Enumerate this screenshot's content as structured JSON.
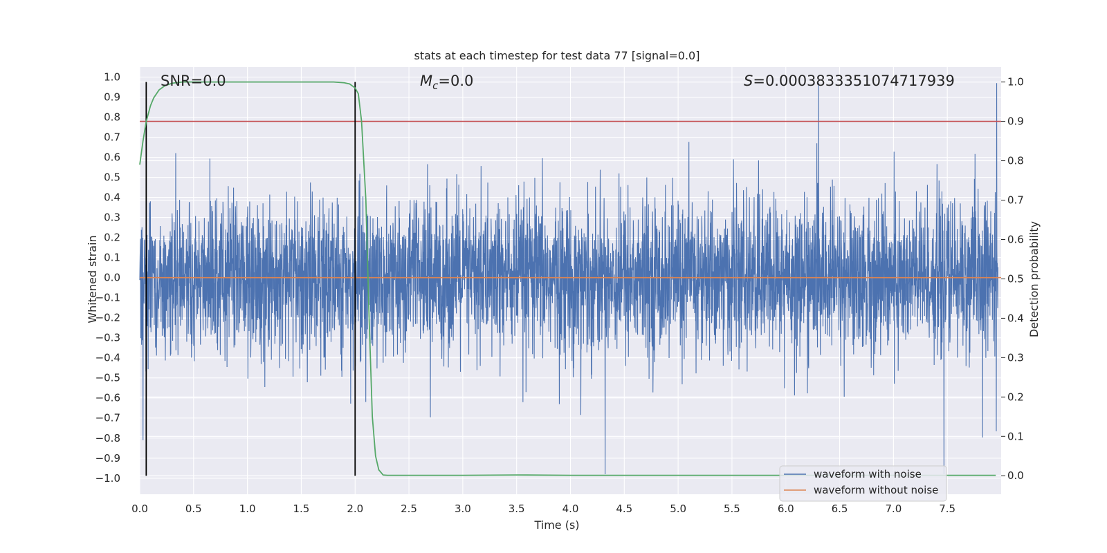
{
  "chart_data": {
    "type": "line",
    "title": "stats at each timestep for test data 77 [signal=0.0]",
    "xlabel": "Time (s)",
    "ylabel_left": "Whitened strain",
    "ylabel_right": "Detection probability",
    "xlim": [
      0.0,
      8.0
    ],
    "ylim_left": [
      -1.08,
      1.05
    ],
    "ylim_right": [
      -0.047,
      1.038
    ],
    "x_ticks": [
      "0.0",
      "0.5",
      "1.0",
      "1.5",
      "2.0",
      "2.5",
      "3.0",
      "3.5",
      "4.0",
      "4.5",
      "5.0",
      "5.5",
      "6.0",
      "6.5",
      "7.0",
      "7.5"
    ],
    "y_ticks_left": [
      "1.0",
      "0.9",
      "0.8",
      "0.7",
      "0.6",
      "0.5",
      "0.4",
      "0.3",
      "0.2",
      "0.1",
      "0.0",
      "−0.1",
      "−0.2",
      "−0.3",
      "−0.4",
      "−0.5",
      "−0.6",
      "−0.7",
      "−0.8",
      "−0.9",
      "−1.0"
    ],
    "y_ticks_right": [
      "1.0",
      "0.9",
      "0.8",
      "0.7",
      "0.6",
      "0.5",
      "0.4",
      "0.3",
      "0.2",
      "0.1",
      "0.0"
    ],
    "grid": true,
    "legend": "lower-right",
    "legend_entries": [
      "waveform with noise",
      "waveform without noise"
    ],
    "annotations": {
      "snr": "SNR=0.0",
      "mc_symbol": "M",
      "mc_sub": "c",
      "mc_value": "=0.0",
      "s_symbol": "S",
      "s_value": "=0.0003833351074717939"
    },
    "threshold": 0.9,
    "vertical_markers": [
      0.06,
      2.0
    ],
    "series": [
      {
        "name": "waveform with noise",
        "axis": "left",
        "color": "#4c72b0",
        "description": "noise-only whitened strain, amplitude mostly within ±0.45 with peaks near ±0.95"
      },
      {
        "name": "waveform without noise",
        "axis": "left",
        "color": "#dd8452",
        "x": [
          0,
          8
        ],
        "y": [
          0.0,
          0.0
        ]
      },
      {
        "name": "detection probability",
        "axis": "right",
        "color": "#55a868",
        "x": [
          0.0,
          0.03,
          0.06,
          0.1,
          0.13,
          0.18,
          0.23,
          0.3,
          0.4,
          0.6,
          1.0,
          1.5,
          1.8,
          1.9,
          1.95,
          2.0,
          2.03,
          2.06,
          2.1,
          2.13,
          2.16,
          2.19,
          2.22,
          2.26,
          2.3,
          2.5,
          3.0,
          3.5,
          4.0,
          5.0,
          6.0,
          7.0,
          7.95
        ],
        "y": [
          0.79,
          0.85,
          0.9,
          0.94,
          0.96,
          0.98,
          0.99,
          0.997,
          1.0,
          1.0,
          1.0,
          1.0,
          1.0,
          0.998,
          0.995,
          0.985,
          0.97,
          0.9,
          0.7,
          0.4,
          0.15,
          0.05,
          0.015,
          0.002,
          0.001,
          0.001,
          0.001,
          0.002,
          0.001,
          0.001,
          0.001,
          0.001,
          0.001
        ]
      }
    ],
    "colors": {
      "background": "#eaeaf2",
      "grid": "#ffffff",
      "threshold": "#c44e52",
      "marker": "#000000"
    }
  }
}
